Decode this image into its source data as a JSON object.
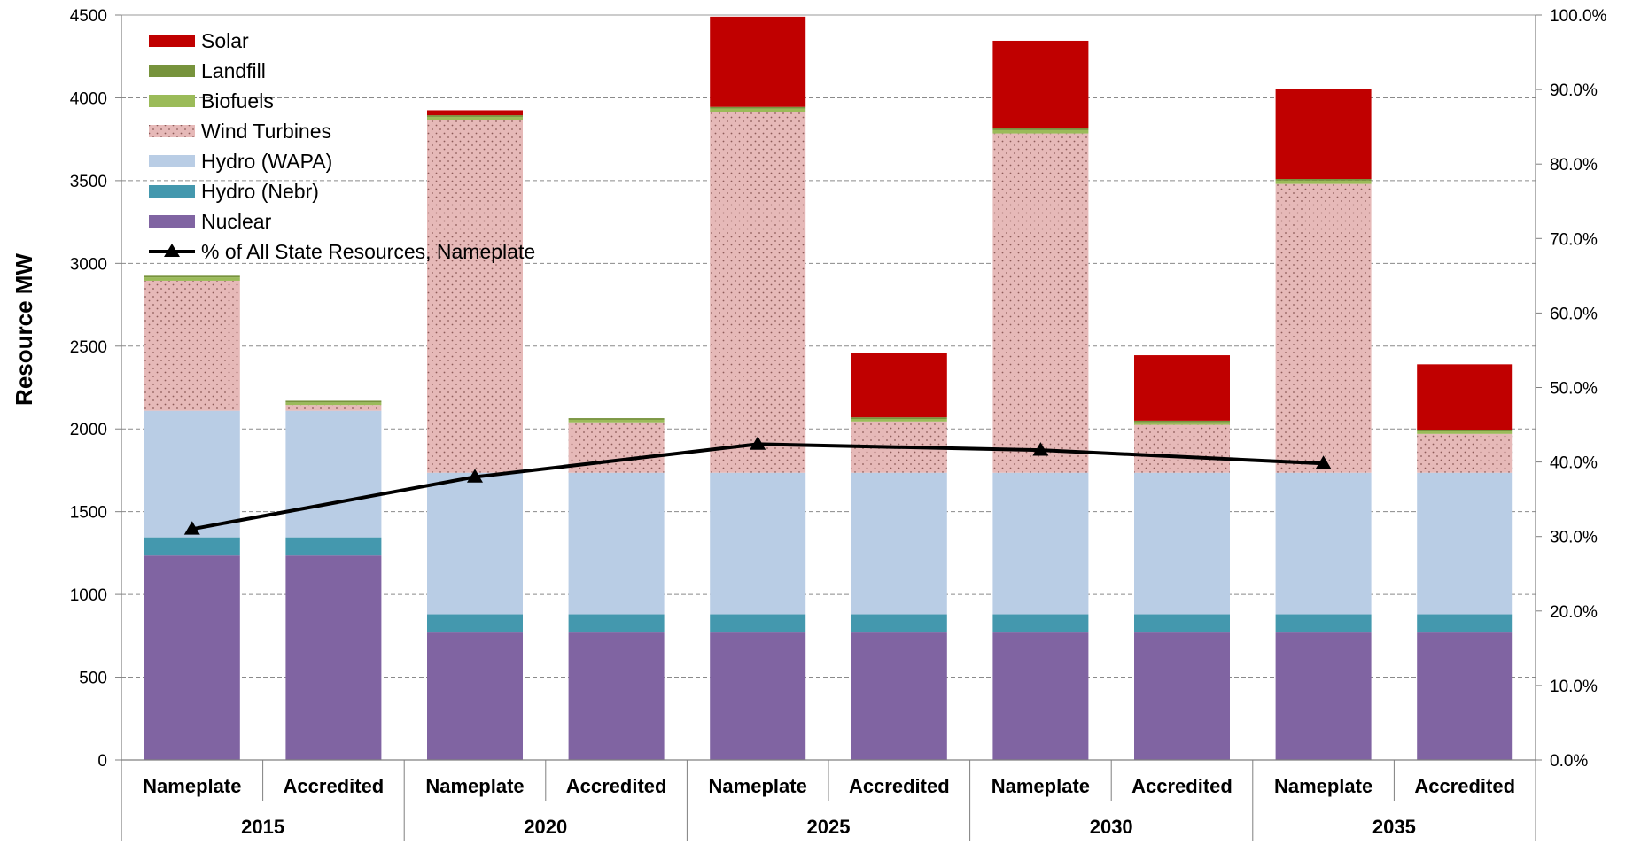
{
  "chart_data": {
    "type": "bar",
    "stacked": true,
    "ylabel": "Resource MW",
    "ylim": [
      0,
      4500
    ],
    "y_ticks": [
      "0",
      "500",
      "1000",
      "1500",
      "2000",
      "2500",
      "3000",
      "3500",
      "4000",
      "4500"
    ],
    "y2lim": [
      0,
      100
    ],
    "y2_ticks": [
      "0.0%",
      "10.0%",
      "20.0%",
      "30.0%",
      "40.0%",
      "50.0%",
      "60.0%",
      "70.0%",
      "80.0%",
      "90.0%",
      "100.0%"
    ],
    "grid": true,
    "legend_position": "top-left",
    "groups": [
      {
        "year": "2015",
        "categories": [
          "Nameplate",
          "Accredited"
        ]
      },
      {
        "year": "2020",
        "categories": [
          "Nameplate",
          "Accredited"
        ]
      },
      {
        "year": "2025",
        "categories": [
          "Nameplate",
          "Accredited"
        ]
      },
      {
        "year": "2030",
        "categories": [
          "Nameplate",
          "Accredited"
        ]
      },
      {
        "year": "2035",
        "categories": [
          "Nameplate",
          "Accredited"
        ]
      }
    ],
    "series": [
      {
        "name": "Nuclear",
        "color": "#8064A2",
        "values": [
          1235,
          1235,
          770,
          770,
          770,
          770,
          770,
          770,
          770,
          770
        ]
      },
      {
        "name": "Hydro (Nebr)",
        "color": "#4498AE",
        "values": [
          110,
          110,
          110,
          110,
          110,
          110,
          110,
          110,
          110,
          110
        ]
      },
      {
        "name": "Hydro (WAPA)",
        "color": "#B9CDE5",
        "values": [
          765,
          765,
          855,
          855,
          855,
          855,
          855,
          855,
          855,
          855
        ]
      },
      {
        "name": "Wind Turbines",
        "color": "#E6B9B8",
        "pattern": "dots",
        "values": [
          785,
          35,
          2130,
          305,
          2180,
          310,
          2050,
          290,
          1745,
          235
        ]
      },
      {
        "name": "Biofuels",
        "color": "#9BBB59",
        "values": [
          20,
          15,
          20,
          15,
          20,
          15,
          20,
          15,
          20,
          15
        ]
      },
      {
        "name": "Landfill",
        "color": "#77933C",
        "values": [
          10,
          10,
          10,
          10,
          10,
          10,
          10,
          10,
          10,
          10
        ]
      },
      {
        "name": "Solar",
        "color": "#C00000",
        "values": [
          0,
          0,
          30,
          0,
          545,
          390,
          530,
          395,
          545,
          395
        ]
      }
    ],
    "line_series": {
      "name": "% of All State Resources, Nameplate",
      "color": "#000000",
      "marker": "triangle",
      "axis": "right",
      "points": [
        {
          "group": "2015",
          "value": 31.0
        },
        {
          "group": "2020",
          "value": 38.0
        },
        {
          "group": "2025",
          "value": 42.4
        },
        {
          "group": "2030",
          "value": 41.6
        },
        {
          "group": "2035",
          "value": 39.8
        }
      ]
    }
  }
}
